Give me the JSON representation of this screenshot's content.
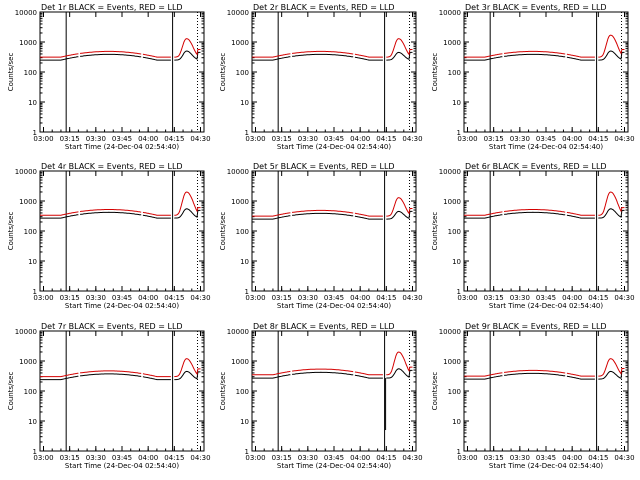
{
  "chart_data": [
    {
      "type": "line",
      "title": "Det 1r  BLACK = Events, RED = LLD",
      "xlabel": "Start Time (24-Dec-04 02:54:40)",
      "ylabel": "Counts/sec",
      "yscale": "log",
      "ylim": [
        1,
        10000
      ],
      "x_ticks": [
        "03:00",
        "03:15",
        "03:30",
        "03:45",
        "04:00",
        "04:15",
        "04:30"
      ],
      "y_ticks": [
        "1",
        "10",
        "100",
        "1000",
        "10000"
      ],
      "series": [
        {
          "name": "Events",
          "color": "#000000",
          "base": 250,
          "dips": []
        },
        {
          "name": "LLD",
          "color": "#d40000",
          "base": 280,
          "dips": []
        }
      ],
      "flare_peak": {
        "events": 500,
        "lld": 1300
      }
    },
    {
      "type": "line",
      "title": "Det 2r  BLACK = Events, RED = LLD",
      "xlabel": "Start Time (24-Dec-04 02:54:40)",
      "ylabel": "Counts/sec",
      "yscale": "log",
      "ylim": [
        1,
        10000
      ],
      "x_ticks": [
        "03:00",
        "03:15",
        "03:30",
        "03:45",
        "04:00",
        "04:15",
        "04:30"
      ],
      "y_ticks": [
        "1",
        "10",
        "100",
        "1000",
        "10000"
      ],
      "series": [
        {
          "name": "Events",
          "color": "#000000",
          "base": 250,
          "dips": []
        },
        {
          "name": "LLD",
          "color": "#d40000",
          "base": 280,
          "dips": []
        }
      ],
      "flare_peak": {
        "events": 450,
        "lld": 1300
      }
    },
    {
      "type": "line",
      "title": "Det 3r  BLACK = Events, RED = LLD",
      "xlabel": "Start Time (24-Dec-04 02:54:40)",
      "ylabel": "Counts/sec",
      "yscale": "log",
      "ylim": [
        1,
        10000
      ],
      "x_ticks": [
        "03:00",
        "03:15",
        "03:30",
        "03:45",
        "04:00",
        "04:15",
        "04:30"
      ],
      "y_ticks": [
        "1",
        "10",
        "100",
        "1000",
        "10000"
      ],
      "series": [
        {
          "name": "Events",
          "color": "#000000",
          "base": 250,
          "dips": []
        },
        {
          "name": "LLD",
          "color": "#d40000",
          "base": 280,
          "dips": []
        }
      ],
      "flare_peak": {
        "events": 500,
        "lld": 1700
      }
    },
    {
      "type": "line",
      "title": "Det 4r  BLACK = Events, RED = LLD",
      "xlabel": "Start Time (24-Dec-04 02:54:40)",
      "ylabel": "Counts/sec",
      "yscale": "log",
      "ylim": [
        1,
        10000
      ],
      "x_ticks": [
        "03:00",
        "03:15",
        "03:30",
        "03:45",
        "04:00",
        "04:15",
        "04:30"
      ],
      "y_ticks": [
        "1",
        "10",
        "100",
        "1000",
        "10000"
      ],
      "series": [
        {
          "name": "Events",
          "color": "#000000",
          "base": 270,
          "dips": []
        },
        {
          "name": "LLD",
          "color": "#d40000",
          "base": 300,
          "dips": []
        }
      ],
      "flare_peak": {
        "events": 550,
        "lld": 2000
      }
    },
    {
      "type": "line",
      "title": "Det 5r  BLACK = Events, RED = LLD",
      "xlabel": "Start Time (24-Dec-04 02:54:40)",
      "ylabel": "Counts/sec",
      "yscale": "log",
      "ylim": [
        1,
        10000
      ],
      "x_ticks": [
        "03:00",
        "03:15",
        "03:30",
        "03:45",
        "04:00",
        "04:15",
        "04:30"
      ],
      "y_ticks": [
        "1",
        "10",
        "100",
        "1000",
        "10000"
      ],
      "series": [
        {
          "name": "Events",
          "color": "#000000",
          "base": 250,
          "dips": []
        },
        {
          "name": "LLD",
          "color": "#d40000",
          "base": 280,
          "dips": []
        }
      ],
      "flare_peak": {
        "events": 450,
        "lld": 1300
      }
    },
    {
      "type": "line",
      "title": "Det 6r  BLACK = Events, RED = LLD",
      "xlabel": "Start Time (24-Dec-04 02:54:40)",
      "ylabel": "Counts/sec",
      "yscale": "log",
      "ylim": [
        1,
        10000
      ],
      "x_ticks": [
        "03:00",
        "03:15",
        "03:30",
        "03:45",
        "04:00",
        "04:15",
        "04:30"
      ],
      "y_ticks": [
        "1",
        "10",
        "100",
        "1000",
        "10000"
      ],
      "series": [
        {
          "name": "Events",
          "color": "#000000",
          "base": 270,
          "dips": []
        },
        {
          "name": "LLD",
          "color": "#d40000",
          "base": 300,
          "dips": []
        }
      ],
      "flare_peak": {
        "events": 550,
        "lld": 2000
      }
    },
    {
      "type": "line",
      "title": "Det 7r  BLACK = Events, RED = LLD",
      "xlabel": "Start Time (24-Dec-04 02:54:40)",
      "ylabel": "Counts/sec",
      "yscale": "log",
      "ylim": [
        1,
        10000
      ],
      "x_ticks": [
        "03:00",
        "03:15",
        "03:30",
        "03:45",
        "04:00",
        "04:15",
        "04:30"
      ],
      "y_ticks": [
        "1",
        "10",
        "100",
        "1000",
        "10000"
      ],
      "series": [
        {
          "name": "Events",
          "color": "#000000",
          "base": 240,
          "dips": []
        },
        {
          "name": "LLD",
          "color": "#d40000",
          "base": 270,
          "dips": []
        }
      ],
      "flare_peak": {
        "events": 450,
        "lld": 1200
      }
    },
    {
      "type": "line",
      "title": "Det 8r  BLACK = Events, RED = LLD",
      "xlabel": "Start Time (24-Dec-04 02:54:40)",
      "ylabel": "Counts/sec",
      "yscale": "log",
      "ylim": [
        1,
        10000
      ],
      "x_ticks": [
        "03:00",
        "03:15",
        "03:30",
        "03:45",
        "04:00",
        "04:15",
        "04:30"
      ],
      "y_ticks": [
        "1",
        "10",
        "100",
        "1000",
        "10000"
      ],
      "series": [
        {
          "name": "Events",
          "color": "#000000",
          "base": 270,
          "dips": [
            {
              "t": "04:14",
              "v": 5
            }
          ]
        },
        {
          "name": "LLD",
          "color": "#d40000",
          "base": 310,
          "dips": []
        }
      ],
      "flare_peak": {
        "events": 550,
        "lld": 2000
      }
    },
    {
      "type": "line",
      "title": "Det 9r  BLACK = Events, RED = LLD",
      "xlabel": "Start Time (24-Dec-04 02:54:40)",
      "ylabel": "Counts/sec",
      "yscale": "log",
      "ylim": [
        1,
        10000
      ],
      "x_ticks": [
        "03:00",
        "03:15",
        "03:30",
        "03:45",
        "04:00",
        "04:15",
        "04:30"
      ],
      "y_ticks": [
        "1",
        "10",
        "100",
        "1000",
        "10000"
      ],
      "series": [
        {
          "name": "Events",
          "color": "#000000",
          "base": 250,
          "dips": []
        },
        {
          "name": "LLD",
          "color": "#d40000",
          "base": 280,
          "dips": []
        }
      ],
      "flare_peak": {
        "events": 450,
        "lld": 1200
      }
    }
  ]
}
